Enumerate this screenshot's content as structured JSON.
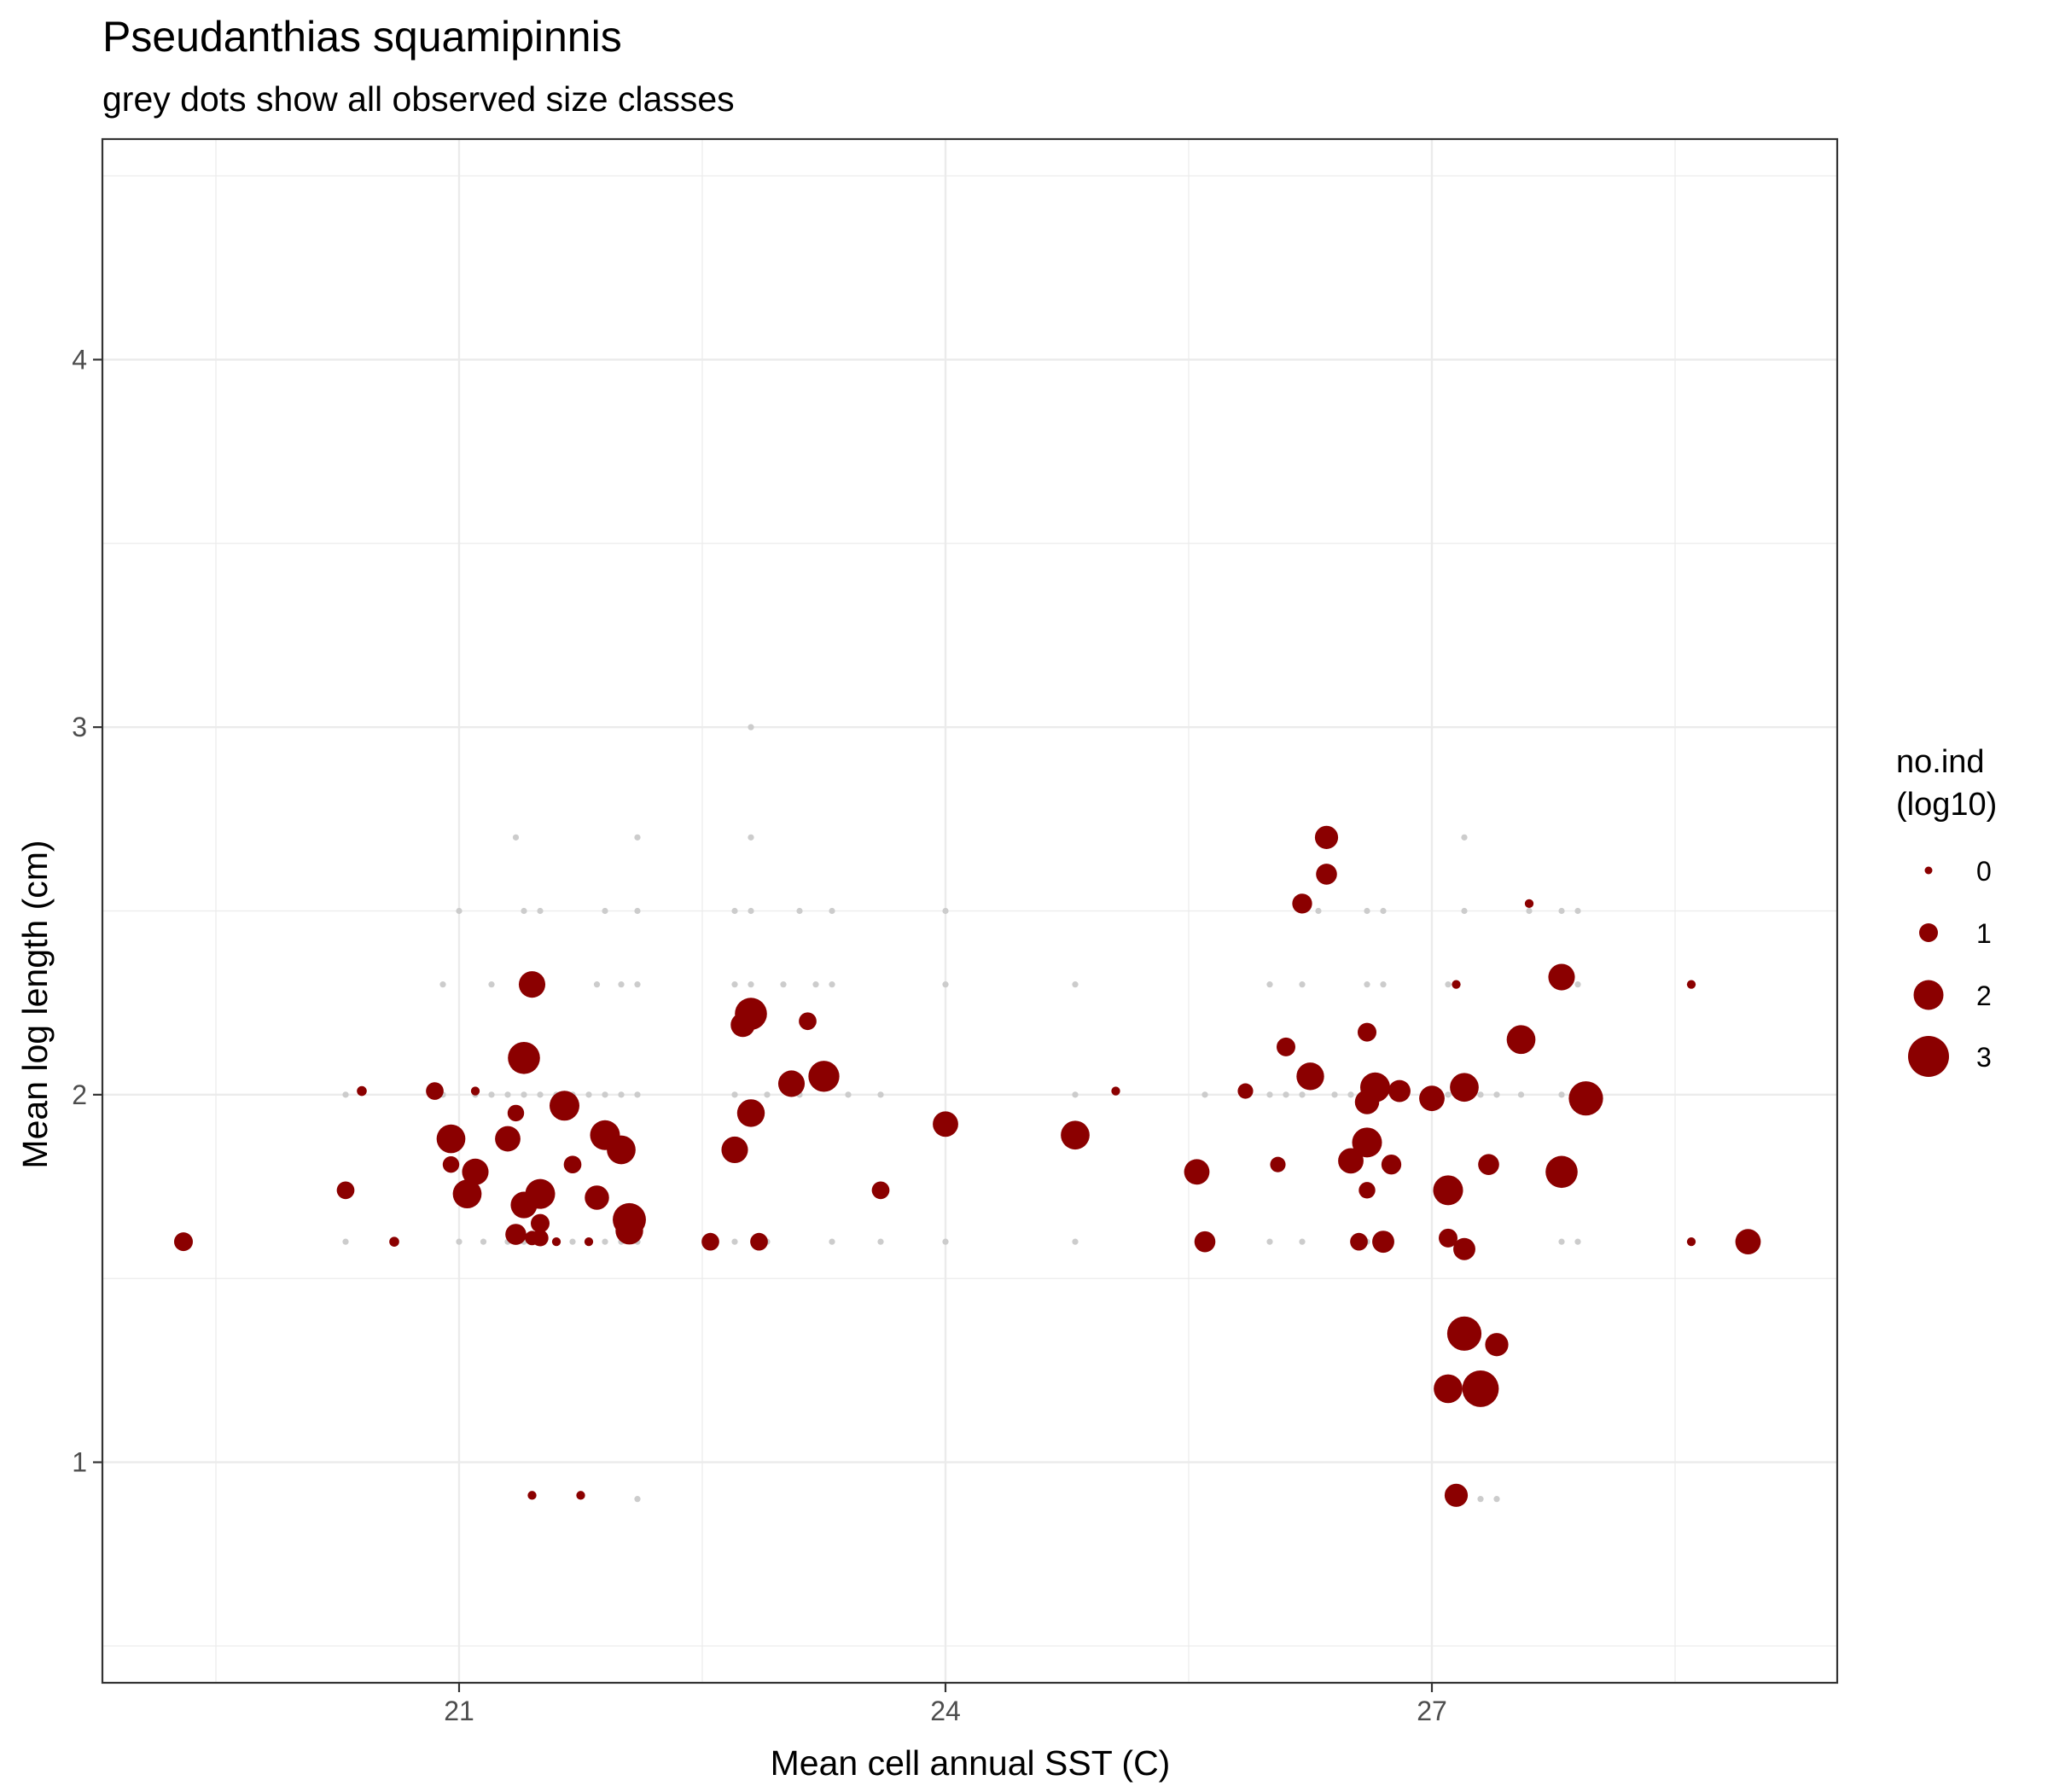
{
  "chart_data": {
    "type": "scatter",
    "title": "Pseudanthias squamipinnis",
    "subtitle": "grey dots show all observed size classes",
    "xlabel": "Mean cell annual SST (C)",
    "ylabel": "Mean log length (cm)",
    "xlim": [
      18.8,
      29.5
    ],
    "ylim": [
      0.4,
      4.6
    ],
    "x_ticks": [
      21,
      24,
      27
    ],
    "y_ticks": [
      1,
      2,
      3,
      4
    ],
    "grid": true,
    "colors": {
      "points": "#8b0000",
      "grey": "#cccccc",
      "grid": "#ebebeb",
      "border": "#333333"
    },
    "legend": {
      "title": [
        "no.ind",
        "(log10)"
      ],
      "position": "right",
      "entries": [
        {
          "label": "0",
          "value": 0
        },
        {
          "label": "1",
          "value": 1
        },
        {
          "label": "2",
          "value": 2
        },
        {
          "label": "3",
          "value": 3
        }
      ]
    },
    "series": [
      {
        "kind": "grey",
        "points": [
          [
            20.3,
            1.6
          ],
          [
            20.3,
            2.0
          ],
          [
            20.6,
            1.6
          ],
          [
            20.9,
            2.0
          ],
          [
            20.9,
            2.3
          ],
          [
            21.0,
            1.6
          ],
          [
            21.0,
            2.5
          ],
          [
            21.1,
            2.0
          ],
          [
            21.15,
            1.6
          ],
          [
            21.2,
            2.0
          ],
          [
            21.2,
            2.3
          ],
          [
            21.3,
            1.6
          ],
          [
            21.3,
            2.0
          ],
          [
            21.35,
            2.7
          ],
          [
            21.4,
            1.6
          ],
          [
            21.4,
            2.0
          ],
          [
            21.4,
            2.5
          ],
          [
            21.5,
            1.6
          ],
          [
            21.5,
            2.0
          ],
          [
            21.5,
            2.3
          ],
          [
            21.5,
            2.5
          ],
          [
            21.6,
            1.6
          ],
          [
            21.6,
            2.0
          ],
          [
            21.7,
            1.6
          ],
          [
            21.7,
            2.0
          ],
          [
            21.8,
            1.6
          ],
          [
            21.8,
            2.0
          ],
          [
            21.85,
            2.3
          ],
          [
            21.9,
            1.6
          ],
          [
            21.9,
            2.0
          ],
          [
            21.9,
            2.5
          ],
          [
            22.0,
            1.6
          ],
          [
            22.0,
            2.0
          ],
          [
            22.0,
            2.3
          ],
          [
            22.1,
            0.9
          ],
          [
            22.1,
            1.6
          ],
          [
            22.1,
            2.0
          ],
          [
            22.1,
            2.3
          ],
          [
            22.1,
            2.5
          ],
          [
            22.1,
            2.7
          ],
          [
            22.7,
            1.6
          ],
          [
            22.7,
            2.0
          ],
          [
            22.7,
            2.3
          ],
          [
            22.7,
            2.5
          ],
          [
            22.8,
            2.3
          ],
          [
            22.8,
            2.5
          ],
          [
            22.8,
            2.7
          ],
          [
            22.8,
            3.0
          ],
          [
            22.9,
            1.6
          ],
          [
            22.9,
            2.0
          ],
          [
            23.0,
            2.3
          ],
          [
            23.1,
            2.0
          ],
          [
            23.1,
            2.5
          ],
          [
            23.2,
            2.3
          ],
          [
            23.3,
            1.6
          ],
          [
            23.3,
            2.3
          ],
          [
            23.3,
            2.5
          ],
          [
            23.4,
            2.0
          ],
          [
            23.6,
            1.6
          ],
          [
            23.6,
            2.0
          ],
          [
            24.0,
            1.6
          ],
          [
            24.0,
            2.3
          ],
          [
            24.0,
            2.5
          ],
          [
            24.8,
            1.6
          ],
          [
            24.8,
            2.0
          ],
          [
            24.8,
            2.3
          ],
          [
            25.6,
            2.0
          ],
          [
            26.0,
            1.6
          ],
          [
            26.0,
            2.0
          ],
          [
            26.0,
            2.3
          ],
          [
            26.1,
            2.0
          ],
          [
            26.2,
            1.6
          ],
          [
            26.2,
            2.0
          ],
          [
            26.2,
            2.3
          ],
          [
            26.3,
            2.5
          ],
          [
            26.4,
            2.0
          ],
          [
            26.5,
            2.0
          ],
          [
            26.6,
            1.6
          ],
          [
            26.6,
            2.0
          ],
          [
            26.6,
            2.3
          ],
          [
            26.6,
            2.5
          ],
          [
            26.7,
            2.0
          ],
          [
            26.7,
            2.3
          ],
          [
            26.7,
            2.5
          ],
          [
            26.8,
            2.0
          ],
          [
            27.0,
            2.0
          ],
          [
            27.1,
            1.6
          ],
          [
            27.1,
            2.0
          ],
          [
            27.1,
            2.3
          ],
          [
            27.2,
            2.0
          ],
          [
            27.2,
            2.5
          ],
          [
            27.2,
            2.7
          ],
          [
            27.3,
            0.9
          ],
          [
            27.3,
            2.0
          ],
          [
            27.4,
            0.9
          ],
          [
            27.4,
            2.0
          ],
          [
            27.55,
            2.0
          ],
          [
            27.6,
            2.5
          ],
          [
            27.8,
            1.6
          ],
          [
            27.8,
            2.0
          ],
          [
            27.8,
            2.5
          ],
          [
            27.9,
            1.6
          ],
          [
            27.9,
            2.3
          ],
          [
            27.9,
            2.5
          ]
        ]
      },
      {
        "kind": "mean",
        "points": [
          [
            19.3,
            1.6,
            1.0
          ],
          [
            20.3,
            1.74,
            0.9
          ],
          [
            20.4,
            2.01,
            0.2
          ],
          [
            20.6,
            1.6,
            0.2
          ],
          [
            20.85,
            2.01,
            0.9
          ],
          [
            20.95,
            1.88,
            1.9
          ],
          [
            20.95,
            1.81,
            0.8
          ],
          [
            21.05,
            1.73,
            1.9
          ],
          [
            21.1,
            1.79,
            1.7
          ],
          [
            21.1,
            2.01,
            0.1
          ],
          [
            21.3,
            1.88,
            1.6
          ],
          [
            21.35,
            1.95,
            0.8
          ],
          [
            21.35,
            1.62,
            1.2
          ],
          [
            21.4,
            1.7,
            1.7
          ],
          [
            21.4,
            2.1,
            2.2
          ],
          [
            21.45,
            1.61,
            0.6
          ],
          [
            21.45,
            2.3,
            1.7
          ],
          [
            21.45,
            0.91,
            0.1
          ],
          [
            21.5,
            1.65,
            1.0
          ],
          [
            21.5,
            1.61,
            0.8
          ],
          [
            21.5,
            1.73,
            2.0
          ],
          [
            21.6,
            1.6,
            0.1
          ],
          [
            21.65,
            1.97,
            2.0
          ],
          [
            21.7,
            1.81,
            0.9
          ],
          [
            21.75,
            0.91,
            0.1
          ],
          [
            21.8,
            1.6,
            0.1
          ],
          [
            21.85,
            1.72,
            1.5
          ],
          [
            21.9,
            1.89,
            2.0
          ],
          [
            22.0,
            1.85,
            1.9
          ],
          [
            22.05,
            1.63,
            1.8
          ],
          [
            22.05,
            1.66,
            2.3
          ],
          [
            22.55,
            1.6,
            0.9
          ],
          [
            22.7,
            1.85,
            1.7
          ],
          [
            22.75,
            2.19,
            1.5
          ],
          [
            22.8,
            1.95,
            1.8
          ],
          [
            22.8,
            2.22,
            2.2
          ],
          [
            22.85,
            1.6,
            0.9
          ],
          [
            23.05,
            2.03,
            1.7
          ],
          [
            23.15,
            2.2,
            0.9
          ],
          [
            23.25,
            2.05,
            2.1
          ],
          [
            23.6,
            1.74,
            0.9
          ],
          [
            24.0,
            1.92,
            1.6
          ],
          [
            24.8,
            1.89,
            1.9
          ],
          [
            25.05,
            2.01,
            0.1
          ],
          [
            25.55,
            1.79,
            1.6
          ],
          [
            25.6,
            1.6,
            1.2
          ],
          [
            25.85,
            2.01,
            0.7
          ],
          [
            26.05,
            1.81,
            0.7
          ],
          [
            26.1,
            2.13,
            1.0
          ],
          [
            26.2,
            2.52,
            1.1
          ],
          [
            26.25,
            2.05,
            1.8
          ],
          [
            26.35,
            2.7,
            1.4
          ],
          [
            26.35,
            2.6,
            1.2
          ],
          [
            26.5,
            1.82,
            1.6
          ],
          [
            26.55,
            1.6,
            0.9
          ],
          [
            26.6,
            2.17,
            1.0
          ],
          [
            26.6,
            1.74,
            0.8
          ],
          [
            26.6,
            1.98,
            1.5
          ],
          [
            26.6,
            1.87,
            2.0
          ],
          [
            26.65,
            2.02,
            2.0
          ],
          [
            26.7,
            1.6,
            1.3
          ],
          [
            26.75,
            1.81,
            1.1
          ],
          [
            26.8,
            2.01,
            1.3
          ],
          [
            27.0,
            1.99,
            1.6
          ],
          [
            27.15,
            2.3,
            0.1
          ],
          [
            27.1,
            1.61,
            1.0
          ],
          [
            27.1,
            1.74,
            2.0
          ],
          [
            27.2,
            1.58,
            1.3
          ],
          [
            27.2,
            2.02,
            1.9
          ],
          [
            27.2,
            1.35,
            2.4
          ],
          [
            27.15,
            0.91,
            1.4
          ],
          [
            27.1,
            1.2,
            1.9
          ],
          [
            27.3,
            1.2,
            2.6
          ],
          [
            27.35,
            1.81,
            1.2
          ],
          [
            27.4,
            1.32,
            1.4
          ],
          [
            27.6,
            2.52,
            0.1
          ],
          [
            27.55,
            2.15,
            1.9
          ],
          [
            27.8,
            2.32,
            1.7
          ],
          [
            27.8,
            1.79,
            2.2
          ],
          [
            27.95,
            1.99,
            2.4
          ],
          [
            28.6,
            2.3,
            0.1
          ],
          [
            28.6,
            1.6,
            0.1
          ],
          [
            28.95,
            1.6,
            1.6
          ]
        ]
      }
    ]
  }
}
